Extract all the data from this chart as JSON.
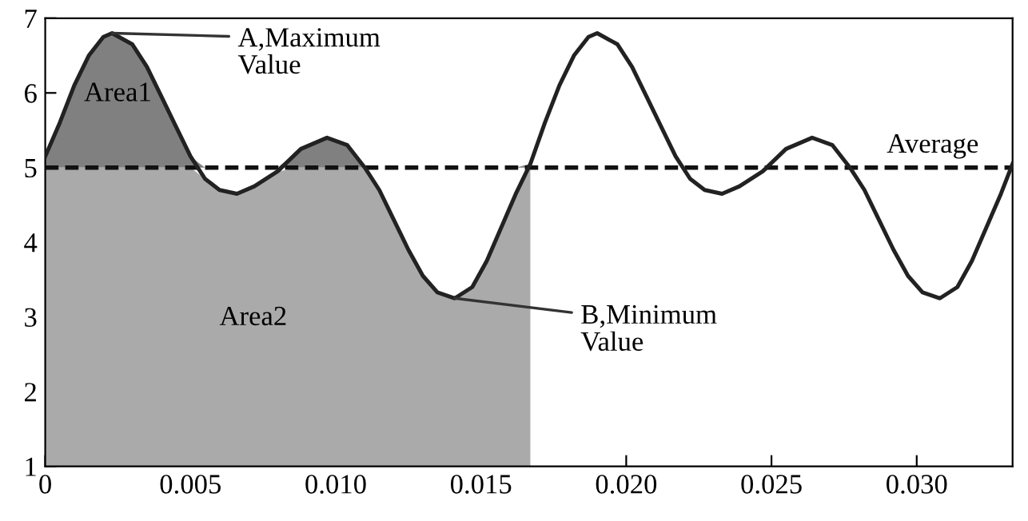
{
  "chart_data": {
    "type": "line",
    "x": [
      0,
      0.0005,
      0.001,
      0.0015,
      0.002,
      0.0023,
      0.003,
      0.0035,
      0.004,
      0.0045,
      0.005,
      0.0055,
      0.006,
      0.0066,
      0.0072,
      0.008,
      0.0088,
      0.0097,
      0.0104,
      0.011,
      0.0115,
      0.012,
      0.0125,
      0.013,
      0.0135,
      0.0141,
      0.0147,
      0.0152,
      0.0157,
      0.0162,
      0.0167,
      0.0172,
      0.0177,
      0.0182,
      0.0187,
      0.019,
      0.0197,
      0.0202,
      0.0207,
      0.0212,
      0.0217,
      0.0222,
      0.0227,
      0.0233,
      0.0239,
      0.0247,
      0.0255,
      0.0264,
      0.0271,
      0.0277,
      0.0282,
      0.0287,
      0.0292,
      0.0297,
      0.0302,
      0.0308,
      0.0314,
      0.0319,
      0.0324,
      0.0329,
      0.0333
    ],
    "series": [
      {
        "type": "area",
        "color": "#aaaaaa",
        "x": [
          0,
          0.0005,
          0.001,
          0.0015,
          0.002,
          0.0023,
          0.003,
          0.0035,
          0.004,
          0.0045,
          0.005,
          0.0055,
          0.006,
          0.0066,
          0.0072,
          0.008,
          0.0088,
          0.0097,
          0.0104,
          0.011,
          0.0115,
          0.012,
          0.0125,
          0.013,
          0.0135,
          0.0141,
          0.0147,
          0.0152,
          0.0157,
          0.0162,
          0.0167
        ],
        "values": [
          5,
          5,
          5,
          5,
          5,
          5,
          5,
          5,
          5,
          5,
          5,
          4.85,
          4.7,
          4.65,
          4.75,
          4.95,
          5,
          5,
          5,
          5,
          4.7,
          4.3,
          3.9,
          3.55,
          3.33,
          3.25,
          3.4,
          3.75,
          4.2,
          4.65,
          5
        ]
      },
      {
        "type": "area",
        "color": "#808080",
        "x": [
          0,
          0.0005,
          0.001,
          0.0015,
          0.002,
          0.0023,
          0.003,
          0.0035,
          0.004,
          0.0045,
          0.005,
          0.0055,
          0.006,
          0.0066,
          0.0072,
          0.008,
          0.0088,
          0.0097,
          0.0104,
          0.011,
          0.0115,
          0.012,
          0.0125,
          0.013,
          0.0135,
          0.0141,
          0.0147,
          0.0152,
          0.0157,
          0.0162,
          0.0167
        ],
        "values": [
          5.15,
          5.6,
          6.1,
          6.5,
          6.75,
          6.8,
          6.65,
          6.35,
          5.95,
          5.55,
          5.15,
          5,
          5,
          5,
          5,
          5,
          5.25,
          5.4,
          5.3,
          5.0,
          5,
          5,
          5,
          5,
          5,
          5,
          5,
          5,
          5,
          5,
          5.05
        ]
      },
      {
        "color": "#222222",
        "values": [
          5.15,
          5.6,
          6.1,
          6.5,
          6.75,
          6.8,
          6.65,
          6.35,
          5.95,
          5.55,
          5.15,
          4.85,
          4.7,
          4.65,
          4.75,
          4.95,
          5.25,
          5.4,
          5.3,
          5.0,
          4.7,
          4.3,
          3.9,
          3.55,
          3.33,
          3.25,
          3.4,
          3.75,
          4.2,
          4.65,
          5.05,
          5.6,
          6.1,
          6.5,
          6.75,
          6.8,
          6.65,
          6.35,
          5.95,
          5.55,
          5.15,
          4.85,
          4.7,
          4.65,
          4.75,
          4.95,
          5.25,
          5.4,
          5.3,
          5.0,
          4.7,
          4.3,
          3.9,
          3.55,
          3.33,
          3.25,
          3.4,
          3.75,
          4.2,
          4.65,
          5.05
        ]
      }
    ],
    "xlim": [
      0,
      0.0333
    ],
    "ylim": [
      1,
      7
    ],
    "xticks": [
      0,
      0.005,
      {
        "value": 0.01,
        "label": "0.010"
      },
      0.015,
      {
        "value": 0.02,
        "label": "0.020"
      },
      0.025,
      {
        "value": 0.03,
        "label": "0.030"
      }
    ],
    "yticks": [
      1,
      2,
      3,
      4,
      5,
      6,
      7
    ],
    "ref_lines": [
      {
        "axis": "y",
        "value": 5,
        "label": "Average",
        "color": "#111111",
        "line_style": "dashed"
      }
    ],
    "annotations": [
      {
        "text": "A,Maximum\nValue",
        "x": 0.0023,
        "y": 6.8
      },
      {
        "text": "B,Minimum\nValue",
        "x": 0.0141,
        "y": 3.25
      },
      "Area1",
      "Area2"
    ],
    "grid": false,
    "legend": false
  }
}
